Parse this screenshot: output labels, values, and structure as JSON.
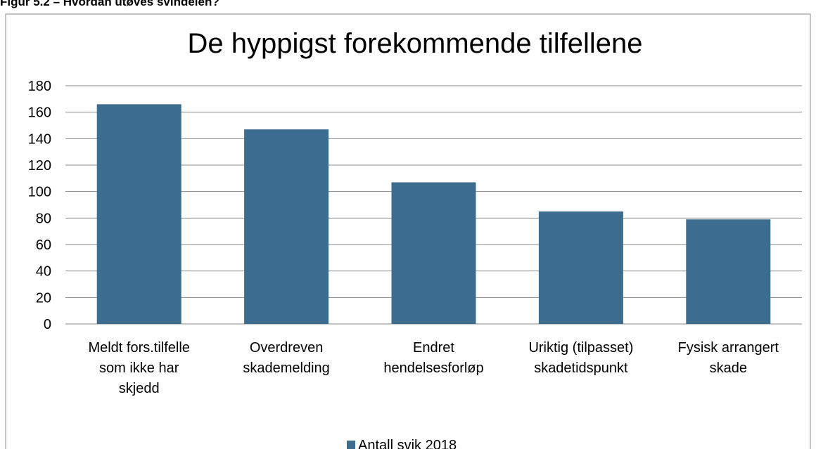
{
  "figure_caption": "Figur 5.2 – Hvordan utøves svindelen?",
  "chart_data": {
    "type": "bar",
    "title": "De hyppigst forekommende tilfellene",
    "categories": [
      [
        "Meldt fors.tilfelle",
        "som ikke har",
        "skjedd"
      ],
      [
        "Overdreven",
        "skademelding"
      ],
      [
        "Endret",
        "hendelsesforløp"
      ],
      [
        "Uriktig (tilpasset)",
        "skadetidspunkt"
      ],
      [
        "Fysisk arrangert",
        "skade"
      ]
    ],
    "series": [
      {
        "name": "Antall svik 2018",
        "color": "#3d6d8e",
        "values": [
          166,
          147,
          107,
          85,
          79
        ]
      }
    ],
    "ylim": [
      0,
      180
    ],
    "yticks": [
      0,
      20,
      40,
      60,
      80,
      100,
      120,
      140,
      160,
      180
    ],
    "grid": true,
    "legend": "bottom"
  }
}
